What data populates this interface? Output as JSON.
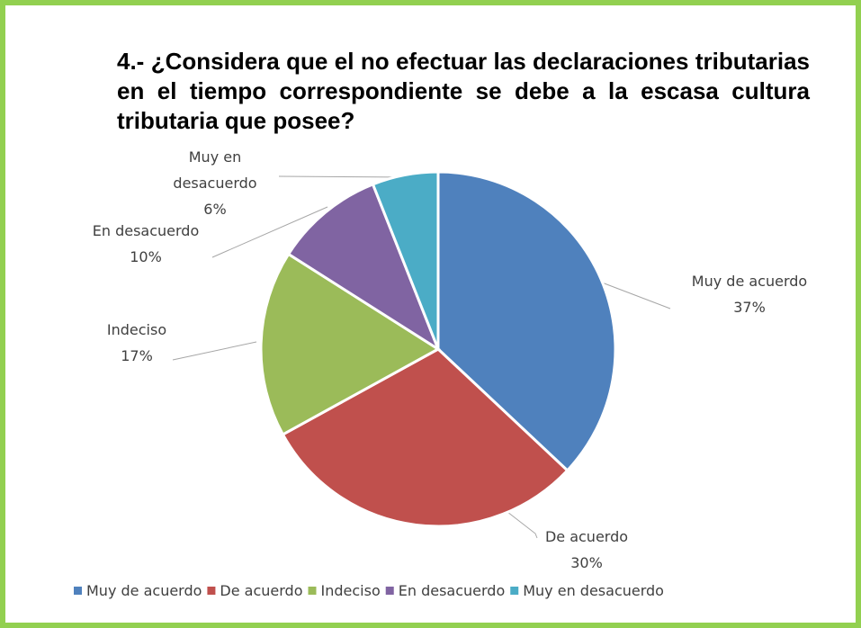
{
  "chart_data": {
    "type": "pie",
    "title": "4.- ¿Considera que el no efectuar las declaraciones tributarias en el tiempo correspondiente se debe a la escasa cultura tributaria que posee?",
    "categories": [
      "Muy de acuerdo",
      "De acuerdo",
      "Indeciso",
      "En desacuerdo",
      "Muy en desacuerdo"
    ],
    "values": [
      37,
      30,
      17,
      10,
      6
    ],
    "data_labels": [
      {
        "lines": [
          "Muy de acuerdo",
          "37%"
        ]
      },
      {
        "lines": [
          "De acuerdo",
          "30%"
        ]
      },
      {
        "lines": [
          "Indeciso",
          "17%"
        ]
      },
      {
        "lines": [
          "En desacuerdo",
          "10%"
        ]
      },
      {
        "lines": [
          "Muy en",
          "desacuerdo",
          "6%"
        ]
      }
    ],
    "colors": [
      "#4f81bd",
      "#c0504d",
      "#9bbb59",
      "#8064a2",
      "#4bacc6"
    ],
    "legend": {
      "placement": "bottom-left"
    },
    "start_angle": "top, clockwise"
  },
  "frame_color": "#92d050"
}
